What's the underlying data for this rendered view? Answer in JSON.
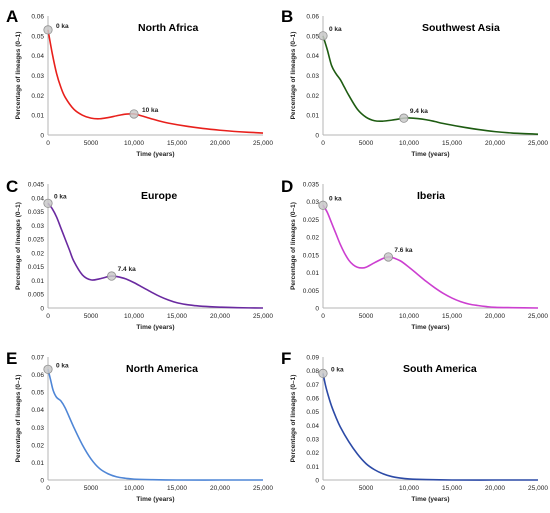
{
  "figure": {
    "xlabel": "Time (years)",
    "ylabel": "Percentage of lineages (0–1)",
    "x_ticks": [
      0,
      5000,
      10000,
      15000,
      20000,
      25000
    ],
    "x_tick_labels": [
      "0",
      "5000",
      "10,000",
      "15,000",
      "20,000",
      "25,000"
    ]
  },
  "chart_data": [
    {
      "type": "line",
      "panel_letter": "A",
      "title": "North Africa",
      "xlabel": "Time (years)",
      "ylabel": "Percentage of lineages (0–1)",
      "xlim": [
        0,
        25000
      ],
      "ylim": [
        0,
        0.06
      ],
      "y_ticks": [
        0,
        0.01,
        0.02,
        0.03,
        0.04,
        0.05,
        0.06
      ],
      "y_tick_labels": [
        "0",
        "0.01",
        "0.02",
        "0.03",
        "0.04",
        "0.05",
        "0.06"
      ],
      "color": "#e8201c",
      "x": [
        0,
        500,
        1000,
        1500,
        2000,
        3000,
        4000,
        5000,
        6000,
        7000,
        8000,
        9000,
        10000,
        11000,
        12000,
        13000,
        14000,
        16000,
        18000,
        20000,
        22000,
        25000
      ],
      "y": [
        0.053,
        0.041,
        0.031,
        0.024,
        0.019,
        0.013,
        0.01,
        0.0085,
        0.0082,
        0.0088,
        0.0097,
        0.0105,
        0.0106,
        0.0095,
        0.0082,
        0.007,
        0.006,
        0.0045,
        0.0033,
        0.0024,
        0.0017,
        0.001
      ],
      "markers": [
        {
          "x": 0,
          "y": 0.053,
          "label": "0 ka"
        },
        {
          "x": 10000,
          "y": 0.0106,
          "label": "10 ka"
        }
      ]
    },
    {
      "type": "line",
      "panel_letter": "B",
      "title": "Southwest Asia",
      "xlabel": "Time (years)",
      "ylabel": "Percentage of lineages (0–1)",
      "xlim": [
        0,
        25000
      ],
      "ylim": [
        0,
        0.06
      ],
      "y_ticks": [
        0,
        0.01,
        0.02,
        0.03,
        0.04,
        0.05,
        0.06
      ],
      "y_tick_labels": [
        "0",
        "0.01",
        "0.02",
        "0.03",
        "0.04",
        "0.05",
        "0.06"
      ],
      "color": "#1e5c12",
      "x": [
        0,
        500,
        1000,
        1500,
        2000,
        2500,
        3000,
        4000,
        5000,
        6000,
        7000,
        8000,
        9000,
        9400,
        10000,
        11000,
        12000,
        13000,
        14000,
        16000,
        18000,
        20000,
        22000,
        25000
      ],
      "y": [
        0.05,
        0.043,
        0.035,
        0.031,
        0.028,
        0.024,
        0.02,
        0.013,
        0.009,
        0.0072,
        0.007,
        0.0075,
        0.0082,
        0.0085,
        0.0086,
        0.0083,
        0.0077,
        0.0068,
        0.0058,
        0.0042,
        0.0028,
        0.0017,
        0.001,
        0.0004
      ],
      "markers": [
        {
          "x": 0,
          "y": 0.05,
          "label": "0 ka"
        },
        {
          "x": 9400,
          "y": 0.0085,
          "label": "9.4 ka"
        }
      ]
    },
    {
      "type": "line",
      "panel_letter": "C",
      "title": "Europe",
      "xlabel": "Time (years)",
      "ylabel": "Percentage of lineages (0–1)",
      "xlim": [
        0,
        25000
      ],
      "ylim": [
        0,
        0.045
      ],
      "y_ticks": [
        0,
        0.005,
        0.01,
        0.015,
        0.02,
        0.025,
        0.03,
        0.035,
        0.04,
        0.045
      ],
      "y_tick_labels": [
        "0",
        "0.005",
        "0.01",
        "0.015",
        "0.02",
        "0.025",
        "0.03",
        "0.035",
        "0.04",
        "0.045"
      ],
      "color": "#6a2aa0",
      "x": [
        0,
        500,
        1000,
        1500,
        2000,
        2500,
        3000,
        4000,
        5000,
        6000,
        7000,
        7400,
        8000,
        9000,
        10000,
        11000,
        12000,
        13000,
        14000,
        15000,
        16000,
        17000,
        18000,
        20000,
        22000,
        25000
      ],
      "y": [
        0.038,
        0.036,
        0.033,
        0.029,
        0.025,
        0.021,
        0.017,
        0.012,
        0.0102,
        0.0106,
        0.0114,
        0.0116,
        0.0114,
        0.0106,
        0.0092,
        0.0075,
        0.0058,
        0.0042,
        0.0029,
        0.0019,
        0.0013,
        0.0009,
        0.0006,
        0.0003,
        0.0001,
        0
      ],
      "markers": [
        {
          "x": 0,
          "y": 0.038,
          "label": "0 ka"
        },
        {
          "x": 7400,
          "y": 0.0116,
          "label": "7.4 ka"
        }
      ]
    },
    {
      "type": "line",
      "panel_letter": "D",
      "title": "Iberia",
      "xlabel": "Time (years)",
      "ylabel": "Percentage of lineages (0–1)",
      "xlim": [
        0,
        25000
      ],
      "ylim": [
        0,
        0.035
      ],
      "y_ticks": [
        0,
        0.005,
        0.01,
        0.015,
        0.02,
        0.025,
        0.03,
        0.035
      ],
      "y_tick_labels": [
        "0",
        "0.005",
        "0.01",
        "0.015",
        "0.02",
        "0.025",
        "0.03",
        "0.035"
      ],
      "color": "#cc3fd0",
      "x": [
        0,
        500,
        1000,
        1500,
        2000,
        2500,
        3000,
        3500,
        4000,
        4500,
        5000,
        6000,
        7000,
        7600,
        8000,
        9000,
        10000,
        11000,
        12000,
        13000,
        14000,
        15000,
        16000,
        17000,
        18000,
        19000,
        20000,
        22000,
        25000
      ],
      "y": [
        0.029,
        0.027,
        0.024,
        0.021,
        0.018,
        0.0155,
        0.0135,
        0.0122,
        0.0115,
        0.0113,
        0.0115,
        0.0128,
        0.014,
        0.0144,
        0.0143,
        0.0133,
        0.0115,
        0.0095,
        0.0075,
        0.0057,
        0.0041,
        0.0028,
        0.0018,
        0.0011,
        0.0007,
        0.0004,
        0.0002,
        0.0001,
        0
      ],
      "markers": [
        {
          "x": 0,
          "y": 0.029,
          "label": "0 ka"
        },
        {
          "x": 7600,
          "y": 0.0144,
          "label": "7.6 ka"
        }
      ]
    },
    {
      "type": "line",
      "panel_letter": "E",
      "title": "North America",
      "xlabel": "Time (years)",
      "ylabel": "Percentage of lineages (0–1)",
      "xlim": [
        0,
        25000
      ],
      "ylim": [
        0,
        0.07
      ],
      "y_ticks": [
        0,
        0.01,
        0.02,
        0.03,
        0.04,
        0.05,
        0.06,
        0.07
      ],
      "y_tick_labels": [
        "0",
        "0.01",
        "0.02",
        "0.03",
        "0.04",
        "0.05",
        "0.06",
        "0.07"
      ],
      "color": "#4f86d6",
      "x": [
        0,
        300,
        600,
        1000,
        1500,
        2000,
        3000,
        4000,
        5000,
        6000,
        7000,
        8000,
        9000,
        10000,
        12000,
        15000,
        20000,
        25000
      ],
      "y": [
        0.063,
        0.057,
        0.051,
        0.047,
        0.045,
        0.041,
        0.03,
        0.02,
        0.012,
        0.0065,
        0.0035,
        0.0018,
        0.001,
        0.0005,
        0.0002,
        0,
        0,
        0
      ],
      "markers": [
        {
          "x": 0,
          "y": 0.063,
          "label": "0 ka"
        }
      ]
    },
    {
      "type": "line",
      "panel_letter": "F",
      "title": "South America",
      "xlabel": "Time (years)",
      "ylabel": "Percentage of lineages (0–1)",
      "xlim": [
        0,
        25000
      ],
      "ylim": [
        0,
        0.09
      ],
      "y_ticks": [
        0,
        0.01,
        0.02,
        0.03,
        0.04,
        0.05,
        0.06,
        0.07,
        0.08,
        0.09
      ],
      "y_tick_labels": [
        "0",
        "0.01",
        "0.02",
        "0.03",
        "0.04",
        "0.05",
        "0.06",
        "0.07",
        "0.08",
        "0.09"
      ],
      "color": "#2c4aa6",
      "x": [
        0,
        300,
        600,
        1000,
        1500,
        2000,
        3000,
        4000,
        5000,
        6000,
        7000,
        8000,
        9000,
        10000,
        12000,
        15000,
        20000,
        25000
      ],
      "y": [
        0.078,
        0.069,
        0.062,
        0.054,
        0.046,
        0.039,
        0.028,
        0.019,
        0.012,
        0.0075,
        0.0045,
        0.0025,
        0.0014,
        0.0008,
        0.0003,
        0,
        0,
        0
      ],
      "markers": [
        {
          "x": 0,
          "y": 0.078,
          "label": "0 ka"
        }
      ]
    }
  ]
}
